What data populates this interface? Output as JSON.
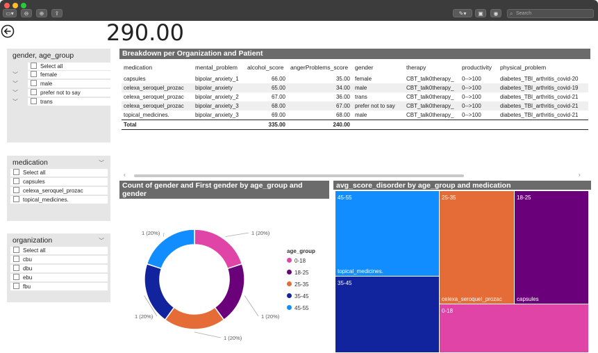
{
  "window": {
    "search_placeholder": "Search",
    "toolbar_icons": [
      "sidebar-icon",
      "zoom-out-icon",
      "zoom-in-icon",
      "share-icon",
      "pen-icon",
      "lock-icon",
      "annotate-icon",
      "search-icon"
    ]
  },
  "kpi": {
    "value": "290.00"
  },
  "slicers": {
    "gender_age": {
      "title": "gender, age_group",
      "items": [
        "Select all",
        "female",
        "male",
        "prefer not to say",
        "trans"
      ]
    },
    "medication": {
      "title": "medication",
      "items": [
        "Select all",
        "capsules",
        "celexa_seroquel_prozac",
        "topical_medicines."
      ]
    },
    "organization": {
      "title": "organization",
      "items": [
        "Select all",
        "cbu",
        "dbu",
        "ebu",
        "fbu"
      ]
    }
  },
  "table": {
    "title": "Breakdown per Organization and Patient",
    "columns": [
      "medication",
      "mental_problem",
      "alcohol_score",
      "angerProblems_score",
      "gender",
      "therapy",
      "productivity",
      "physical_problem"
    ],
    "rows": [
      [
        "capsules",
        "bipolar_anxiety_1",
        "66.00",
        "35.00",
        "female",
        "CBT_talk0therapy_",
        "0-->100",
        "diabetes_TBI_arthritis_covid-20"
      ],
      [
        "celexa_seroquel_prozac",
        "bipolar_anxiety",
        "65.00",
        "34.00",
        "male",
        "CBT_talk0therapy_",
        "0-->100",
        "diabetes_TBI_arthritis_covid-19"
      ],
      [
        "celexa_seroquel_prozac",
        "bipolar_anxiety_2",
        "67.00",
        "36.00",
        "trans",
        "CBT_talk0therapy_",
        "0-->100",
        "diabetes_TBI_arthritis_covid-21"
      ],
      [
        "celexa_seroquel_prozac",
        "bipolar_anxiety_3",
        "68.00",
        "67.00",
        "prefer not to say",
        "CBT_talk0therapy_",
        "0-->100",
        "diabetes_TBI_arthritis_covid-21"
      ],
      [
        "topical_medicines.",
        "bipolar_anxiety_3",
        "69.00",
        "68.00",
        "male",
        "CBT_talk0therapy_",
        "0-->100",
        "diabetes_TBI_arthritis_covid-21"
      ]
    ],
    "total": {
      "label": "Total",
      "alcohol_score": "335.00",
      "angerProblems_score": "240.00"
    }
  },
  "chart_data": [
    {
      "type": "pie",
      "variant": "donut",
      "title": "Count of gender and First gender by age_group and gender",
      "legend_title": "age_group",
      "categories": [
        "0-18",
        "18-25",
        "25-35",
        "35-45",
        "45-55"
      ],
      "values": [
        1,
        1,
        1,
        1,
        1
      ],
      "labels": [
        "1 (20%)",
        "1 (20%)",
        "1 (20%)",
        "1 (20%)",
        "1 (20%)"
      ],
      "colors": [
        "#e044a7",
        "#6b007b",
        "#e66c37",
        "#12239e",
        "#118dff"
      ]
    },
    {
      "type": "treemap",
      "title": "avg_score_disorder by age_group and medication",
      "cells": [
        {
          "age_group": "45-55",
          "medication": "topical_medicines.",
          "color": "#118dff"
        },
        {
          "age_group": "35-45",
          "medication": "",
          "color": "#12239e"
        },
        {
          "age_group": "25-35",
          "medication": "celexa_seroquel_prozac",
          "color": "#e66c37"
        },
        {
          "age_group": "18-25",
          "medication": "capsules",
          "color": "#6b007b"
        },
        {
          "age_group": "0-18",
          "medication": "",
          "color": "#e044a7"
        }
      ]
    }
  ]
}
